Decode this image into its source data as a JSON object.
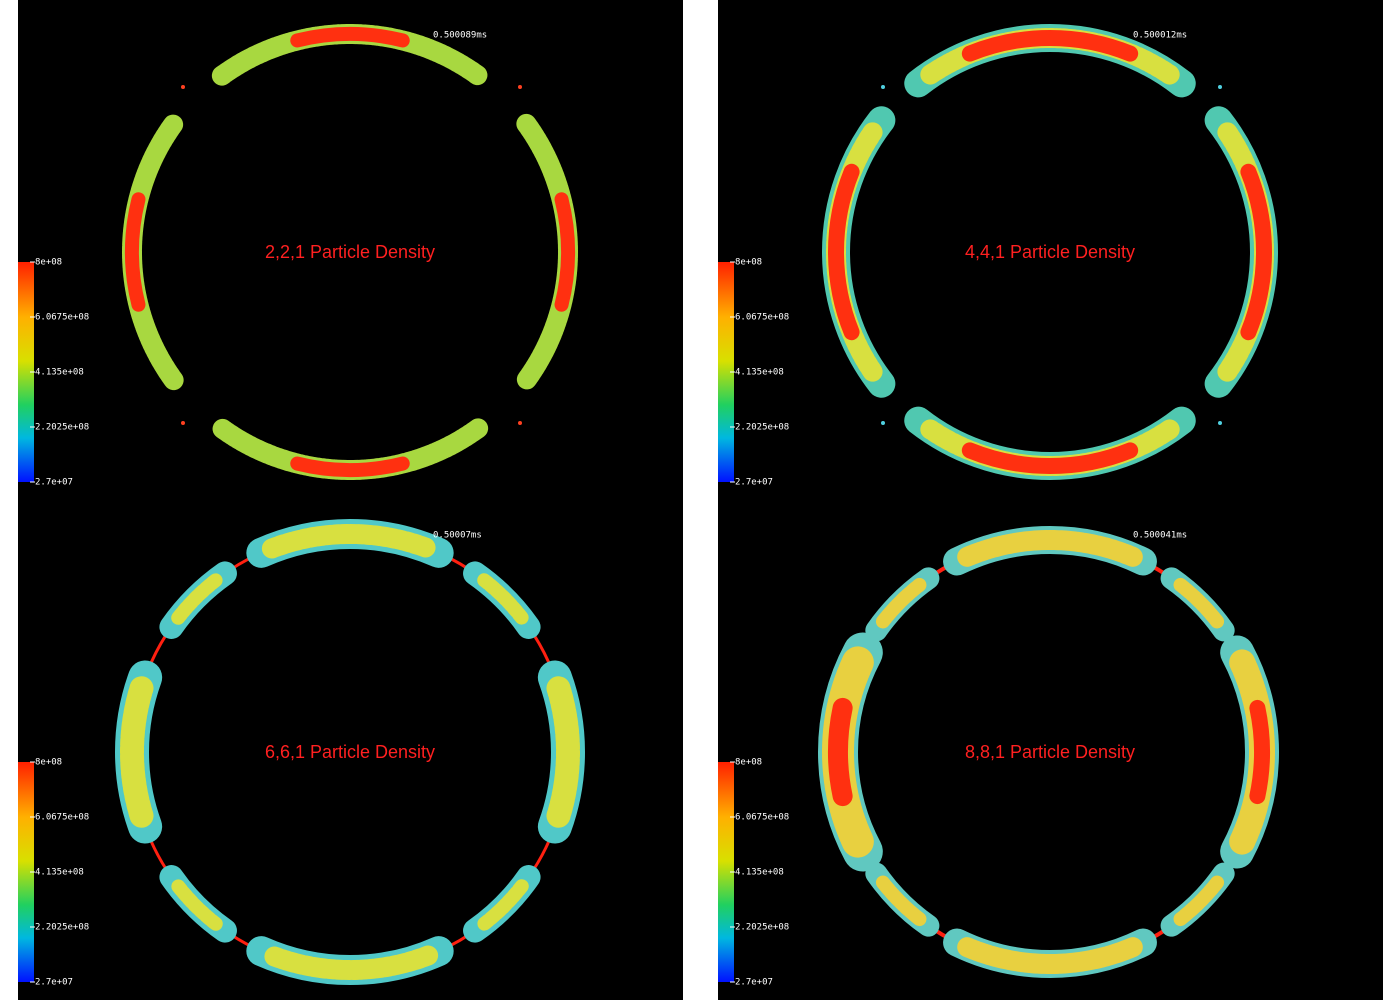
{
  "panels": [
    {
      "title": "2,2,1 Particle Density",
      "time": "0.500089ms",
      "colorbar": [
        "8e+08",
        "6.0675e+08",
        "4.135e+08",
        "2.2025e+08",
        "2.7e+07"
      ]
    },
    {
      "title": "4,4,1 Particle Density",
      "time": "0.500012ms",
      "colorbar": [
        "8e+08",
        "6.0675e+08",
        "4.135e+08",
        "2.2025e+08",
        "2.7e+07"
      ]
    },
    {
      "title": "6,6,1 Particle Density",
      "time": "0.50007ms",
      "colorbar": [
        "8e+08",
        "6.0675e+08",
        "4.135e+08",
        "2.2025e+08",
        "2.7e+07"
      ]
    },
    {
      "title": "8,8,1 Particle Density",
      "time": "0.500041ms",
      "colorbar": [
        "8e+08",
        "6.0675e+08",
        "4.135e+08",
        "2.2025e+08",
        "2.7e+07"
      ]
    }
  ]
}
